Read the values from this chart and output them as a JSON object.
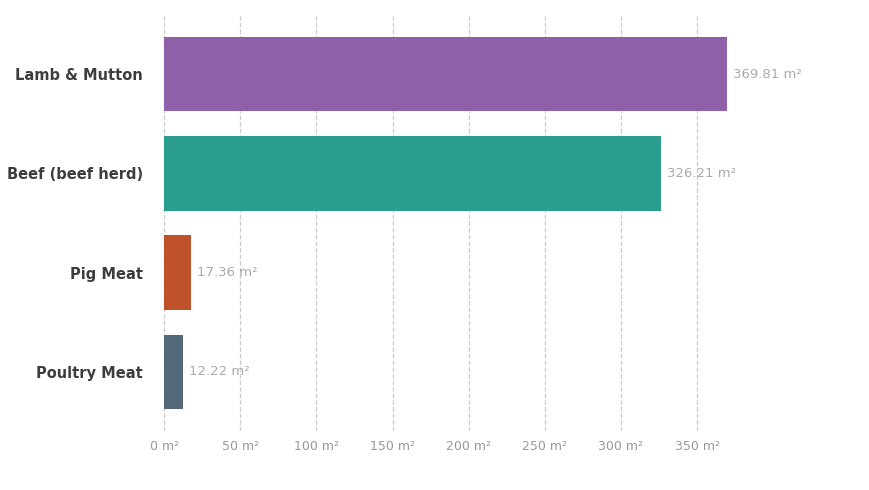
{
  "categories": [
    "Poultry Meat",
    "Pig Meat",
    "Beef (beef herd)",
    "Lamb & Mutton"
  ],
  "values": [
    12.22,
    17.36,
    326.21,
    369.81
  ],
  "bar_colors": [
    "#536878",
    "#c0522b",
    "#2a9d8f",
    "#8e60a8"
  ],
  "bar_labels": [
    "12.22 m²",
    "17.36 m²",
    "326.21 m²",
    "369.81 m²"
  ],
  "xlim": [
    -5,
    395
  ],
  "xticks": [
    0,
    50,
    100,
    150,
    200,
    250,
    300,
    350
  ],
  "xtick_labels": [
    "0 m²",
    "50 m²",
    "100 m²",
    "150 m²",
    "200 m²",
    "250 m²",
    "300 m²",
    "350 m²"
  ],
  "background_color": "#ffffff",
  "grid_color": "#cccccc",
  "label_color": "#aaaaaa",
  "ytick_color": "#3d3d3d",
  "bar_height": 0.75,
  "figsize": [
    8.7,
    4.9
  ],
  "dpi": 100
}
